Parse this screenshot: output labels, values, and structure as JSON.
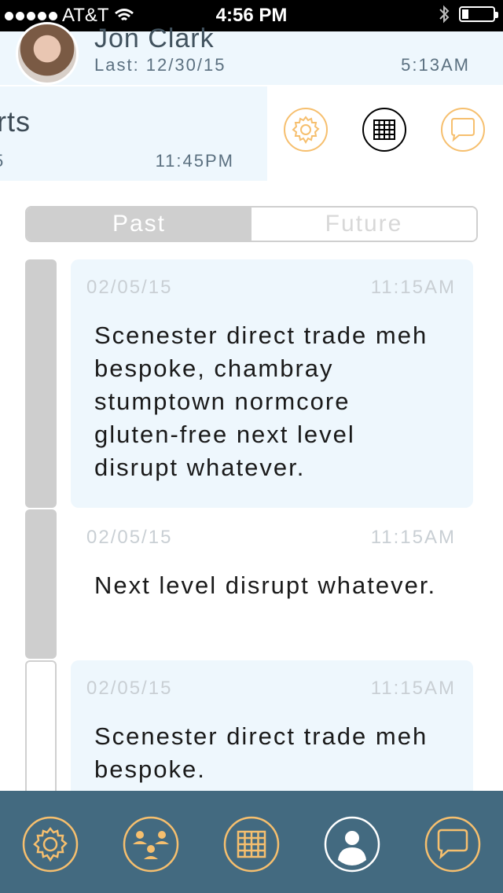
{
  "status_bar": {
    "carrier": "AT&T",
    "time": "4:56 PM"
  },
  "contact": {
    "name": "Jon Clark",
    "last_label": "Last: 12/30/15",
    "last_time": "5:13AM"
  },
  "second_card": {
    "name_fragment": "rts",
    "date_fragment": "5",
    "time": "11:45PM"
  },
  "segment": {
    "past_label": "Past",
    "future_label": "Future",
    "selected": "Past"
  },
  "entries": [
    {
      "date": "02/05/15",
      "time": "11:15AM",
      "text": "Scenester direct trade meh bespoke, chambray stumptown normcore gluten-free next level disrupt whatever."
    },
    {
      "date": "02/05/15",
      "time": "11:15AM",
      "text": "Next level disrupt whatever."
    },
    {
      "date": "02/05/15",
      "time": "11:15AM",
      "text": "Scenester direct trade meh bespoke."
    }
  ],
  "icons": {
    "actions": [
      "gear-icon",
      "calendar-grid-icon",
      "chat-bubble-icon"
    ],
    "tabs": [
      "gear-icon",
      "group-icon",
      "calendar-grid-icon",
      "person-icon",
      "chat-bubble-icon"
    ]
  },
  "colors": {
    "accent_orange": "#f6bf6e",
    "card_bg": "#eef7fd",
    "tabbar_bg": "#436a80",
    "timeline_gray": "#cecece"
  }
}
